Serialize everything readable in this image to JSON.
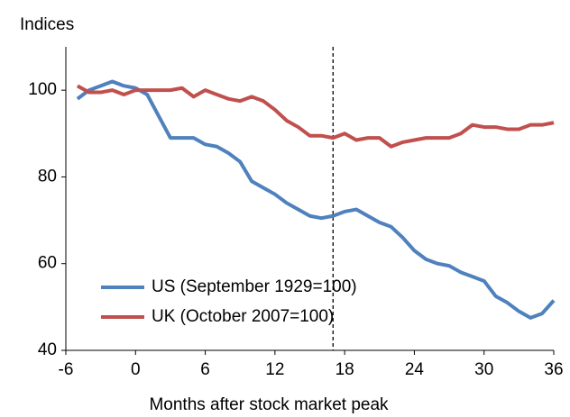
{
  "chart_data": {
    "type": "line",
    "y_label": "Indices",
    "x_label": "Months after stock market peak",
    "x": [
      -5,
      -4,
      -3,
      -2,
      -1,
      0,
      1,
      2,
      3,
      4,
      5,
      6,
      7,
      8,
      9,
      10,
      11,
      12,
      13,
      14,
      15,
      16,
      17,
      18,
      19,
      20,
      21,
      22,
      23,
      24,
      25,
      26,
      27,
      28,
      29,
      30,
      31,
      32,
      33,
      34,
      35,
      36
    ],
    "series": [
      {
        "name": "US (September 1929=100)",
        "color": "#4f81bd",
        "values": [
          98,
          100,
          101,
          102,
          101,
          100.5,
          99,
          94,
          89,
          89,
          89,
          87.5,
          87,
          85.5,
          83.5,
          79,
          77.5,
          76,
          74,
          72.5,
          71,
          70.5,
          71,
          72,
          72.5,
          71,
          69.5,
          68.5,
          66,
          63,
          61,
          60,
          59.5,
          58,
          57,
          56,
          52.5,
          51,
          49,
          47.5,
          48.5,
          51.5
        ]
      },
      {
        "name": "UK (October 2007=100)",
        "color": "#c0504d",
        "values": [
          101,
          99.5,
          99.5,
          100,
          99,
          100,
          100,
          100,
          100,
          100.5,
          98.5,
          100,
          99,
          98,
          97.5,
          98.5,
          97.5,
          95.5,
          93,
          91.5,
          89.5,
          89.5,
          89,
          90,
          88.5,
          89,
          89,
          87,
          88,
          88.5,
          89,
          89,
          89,
          90,
          92,
          91.5,
          91.5,
          91,
          91,
          92,
          92,
          92.5
        ]
      }
    ],
    "vline": 17,
    "xlim": [
      -6,
      36
    ],
    "xticks": [
      -6,
      0,
      6,
      12,
      18,
      24,
      30,
      36
    ],
    "ylim": [
      40,
      110
    ],
    "yticks": [
      40,
      60,
      80,
      100
    ],
    "legend": "lower-left"
  }
}
